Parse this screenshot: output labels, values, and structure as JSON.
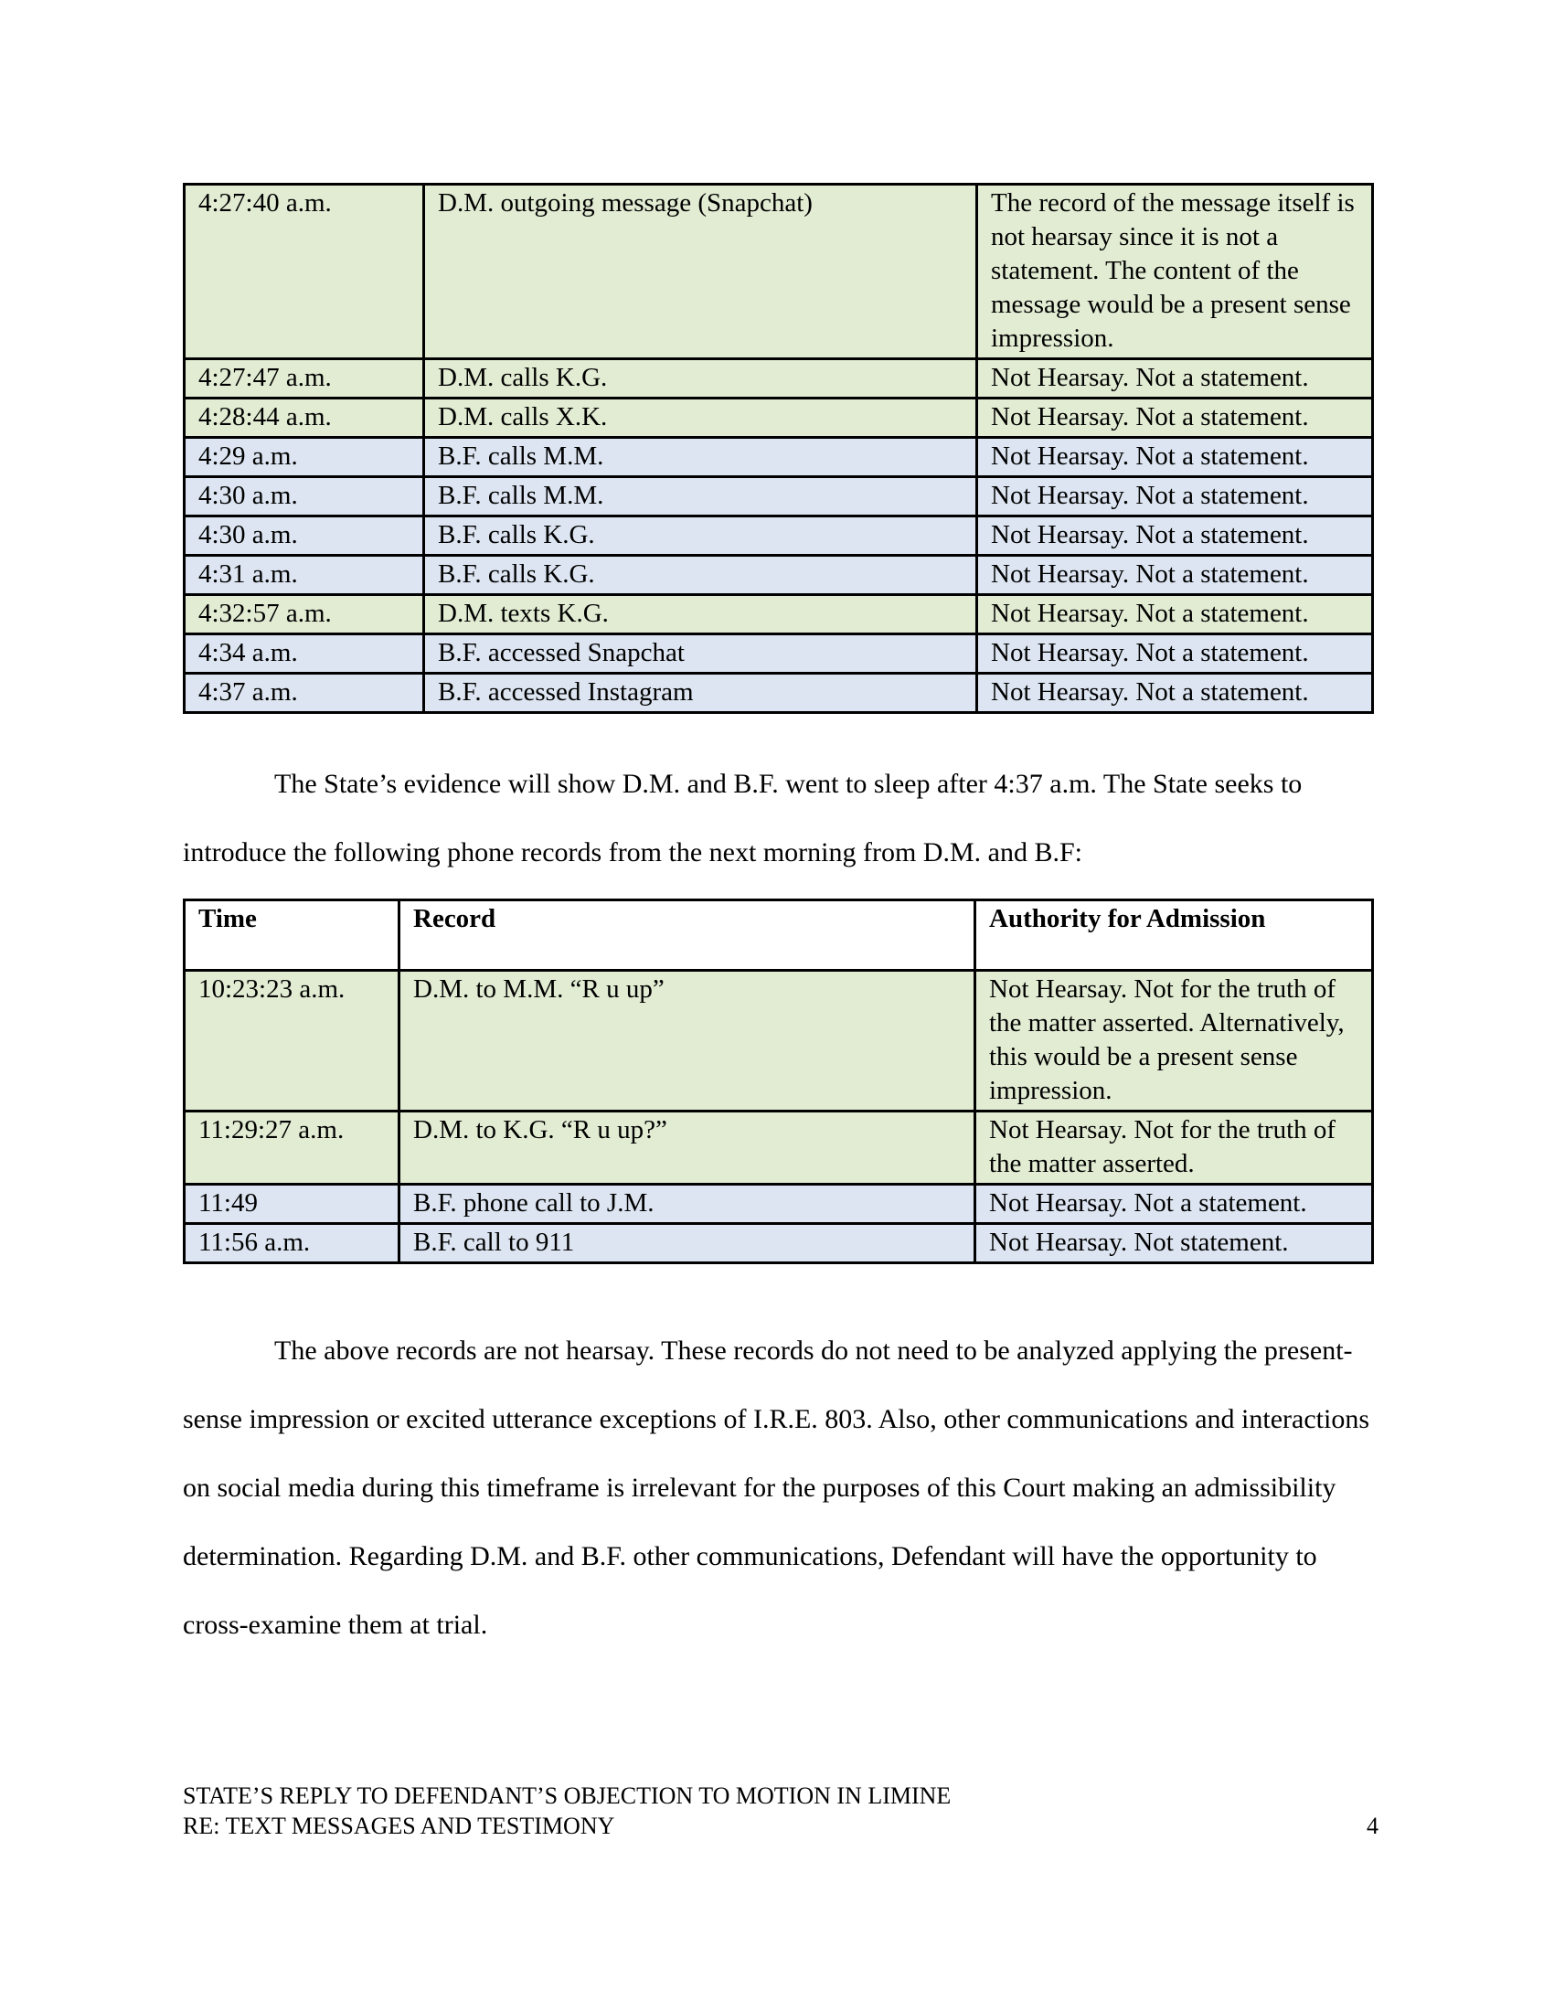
{
  "colors": {
    "green_row": "#e2ecd3",
    "blue_row": "#dce5f1",
    "border": "#000000"
  },
  "table1": {
    "rows": [
      {
        "time": "4:27:40 a.m.",
        "record": "D.M. outgoing message (Snapchat)",
        "authority": "The record of the message itself is not hearsay since it is not a statement. The content of the message would be a present sense impression.",
        "tone": "green"
      },
      {
        "time": "4:27:47 a.m.",
        "record": "D.M. calls K.G.",
        "authority": "Not Hearsay. Not a statement.",
        "tone": "green"
      },
      {
        "time": "4:28:44 a.m.",
        "record": "D.M. calls X.K.",
        "authority": "Not Hearsay. Not a statement.",
        "tone": "green"
      },
      {
        "time": "4:29 a.m.",
        "record": "B.F. calls M.M.",
        "authority": "Not Hearsay. Not a statement.",
        "tone": "blue"
      },
      {
        "time": "4:30 a.m.",
        "record": "B.F. calls M.M.",
        "authority": "Not Hearsay. Not a statement.",
        "tone": "blue"
      },
      {
        "time": "4:30 a.m.",
        "record": "B.F. calls K.G.",
        "authority": "Not Hearsay. Not a statement.",
        "tone": "blue"
      },
      {
        "time": "4:31 a.m.",
        "record": "B.F. calls K.G.",
        "authority": "Not Hearsay. Not a statement.",
        "tone": "blue"
      },
      {
        "time": "4:32:57 a.m.",
        "record": "D.M. texts K.G.",
        "authority": "Not Hearsay. Not a statement.",
        "tone": "green"
      },
      {
        "time": "4:34 a.m.",
        "record": "B.F. accessed Snapchat",
        "authority": "Not Hearsay. Not a statement.",
        "tone": "blue"
      },
      {
        "time": "4:37 a.m.",
        "record": "B.F. accessed Instagram",
        "authority": "Not Hearsay. Not a statement.",
        "tone": "blue"
      }
    ]
  },
  "paragraph1": "The State’s evidence will show D.M. and B.F. went to sleep after 4:37 a.m. The State seeks to introduce the following phone records from the next morning from D.M. and B.F:",
  "table2": {
    "headers": [
      "Time",
      "Record",
      "Authority for Admission"
    ],
    "rows": [
      {
        "time": "10:23:23 a.m.",
        "record": "D.M. to M.M. “R u up”",
        "authority": "Not Hearsay. Not for the truth of the matter asserted. Alternatively, this would be a present sense impression.",
        "tone": "green"
      },
      {
        "time": "11:29:27 a.m.",
        "record": "D.M. to K.G. “R u up?”",
        "authority": "Not Hearsay. Not for the truth of the matter asserted.",
        "tone": "green"
      },
      {
        "time": "11:49",
        "record": "B.F. phone call to J.M.",
        "authority": "Not Hearsay. Not a statement.",
        "tone": "blue"
      },
      {
        "time": "11:56 a.m.",
        "record": "B.F. call to 911",
        "authority": "Not Hearsay. Not statement.",
        "tone": "blue"
      }
    ]
  },
  "paragraph2": "The above records are not hearsay. These records do not need to be analyzed applying the present-sense impression or excited utterance exceptions of I.R.E. 803. Also, other communications and interactions on social media during this timeframe is irrelevant for the purposes of this Court making an admissibility determination. Regarding D.M. and B.F. other communications, Defendant will have the opportunity to cross-examine them at trial.",
  "footer": {
    "line1": "STATE’S REPLY TO DEFENDANT’S OBJECTION TO MOTION IN LIMINE",
    "line2": "RE: TEXT MESSAGES AND TESTIMONY",
    "page_number": "4"
  }
}
